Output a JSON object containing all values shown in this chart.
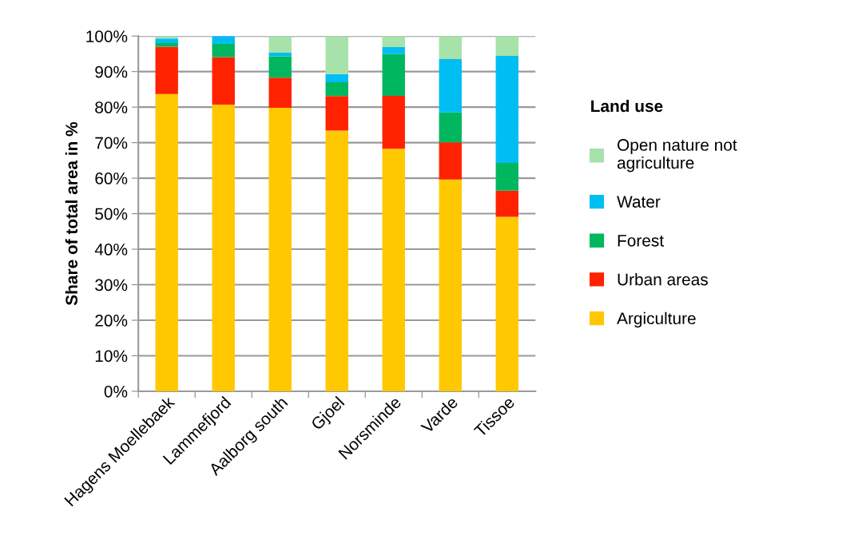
{
  "chart_data": {
    "type": "bar",
    "stacked": true,
    "ylabel": "Share of total area in %",
    "legend_title": "Land use",
    "categories": [
      "Hagens Moellebaek",
      "Lammefjord",
      "Aalborg south",
      "Gjoel",
      "Norsminde",
      "Varde",
      "Tissoe"
    ],
    "series": [
      {
        "name": "Argiculture",
        "color": "#ffc800",
        "values": [
          83.7,
          80.7,
          79.8,
          73.4,
          68.3,
          59.6,
          49.1
        ]
      },
      {
        "name": "Urban areas",
        "color": "#ff2200",
        "values": [
          13.3,
          13.4,
          8.5,
          9.7,
          14.9,
          10.5,
          7.4
        ]
      },
      {
        "name": "Forest",
        "color": "#00b65e",
        "values": [
          1.0,
          3.7,
          6.0,
          3.9,
          11.7,
          8.4,
          7.8
        ]
      },
      {
        "name": "Water",
        "color": "#00bdf2",
        "values": [
          1.3,
          2.2,
          1.0,
          2.3,
          2.0,
          15.0,
          30.1
        ]
      },
      {
        "name": "Open nature not agriculture",
        "color": "#a6e2aa",
        "values": [
          0.7,
          0.0,
          4.7,
          10.7,
          3.1,
          6.5,
          5.6
        ]
      }
    ],
    "ylim": [
      0,
      100
    ],
    "yticks": [
      {
        "value": 0,
        "label": "0%"
      },
      {
        "value": 10,
        "label": "10%"
      },
      {
        "value": 20,
        "label": "20%"
      },
      {
        "value": 30,
        "label": "30%"
      },
      {
        "value": 40,
        "label": "40%"
      },
      {
        "value": 50,
        "label": "50%"
      },
      {
        "value": 60,
        "label": "60%"
      },
      {
        "value": 70,
        "label": "70%"
      },
      {
        "value": 80,
        "label": "80%"
      },
      {
        "value": 90,
        "label": "90%"
      },
      {
        "value": 100,
        "label": "100%"
      }
    ],
    "grid": "y",
    "legend": "right"
  }
}
